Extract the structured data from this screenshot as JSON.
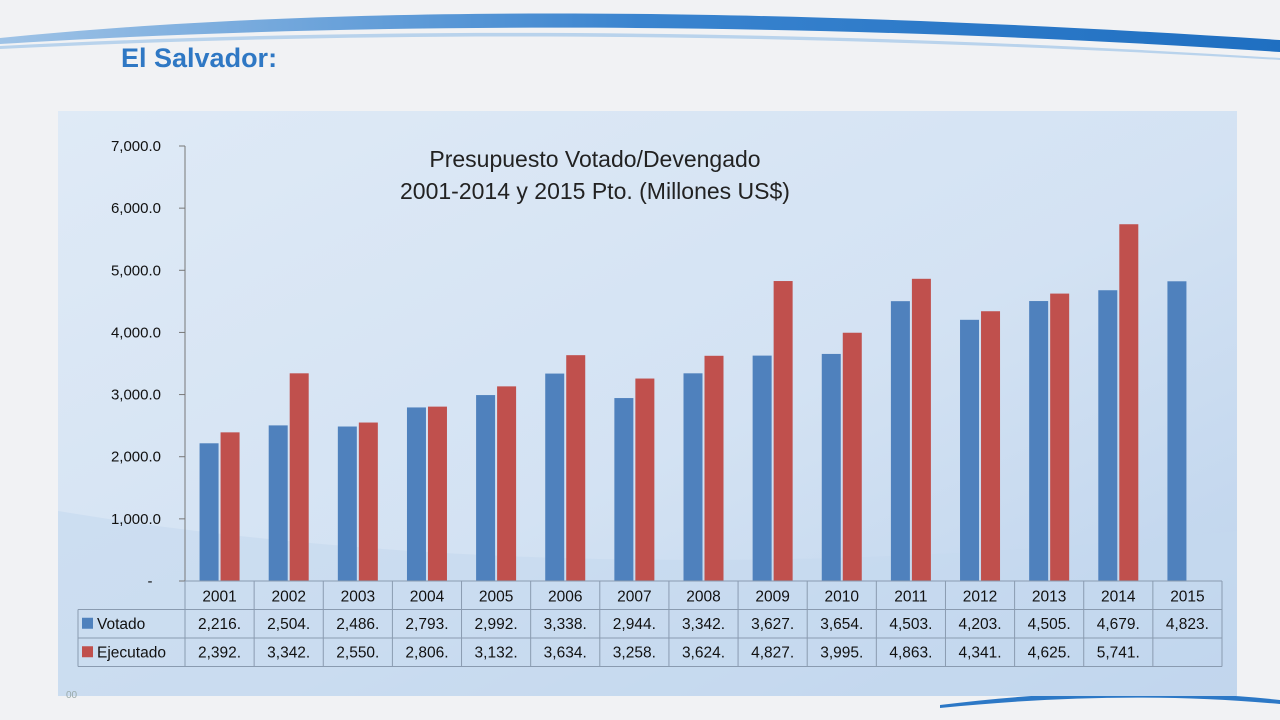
{
  "slide": {
    "title": "El Salvador:",
    "page_number": "00"
  },
  "colors": {
    "votado": "#4f81bd",
    "ejecutado": "#c0504d",
    "title_blue": "#2f78c4"
  },
  "chart_data": {
    "type": "bar",
    "title": "Presupuesto Votado/Devengado",
    "subtitle": "2001-2014 y 2015 Pto. (Millones US$)",
    "categories": [
      "2001",
      "2002",
      "2003",
      "2004",
      "2005",
      "2006",
      "2007",
      "2008",
      "2009",
      "2010",
      "2011",
      "2012",
      "2013",
      "2014",
      "2015"
    ],
    "series": [
      {
        "name": "Votado",
        "values": [
          2216,
          2504,
          2486,
          2793,
          2992,
          3338,
          2944,
          3342,
          3627,
          3654,
          4503,
          4203,
          4505,
          4679,
          4823
        ],
        "labels": [
          "2,216.",
          "2,504.",
          "2,486.",
          "2,793.",
          "2,992.",
          "3,338.",
          "2,944.",
          "3,342.",
          "3,627.",
          "3,654.",
          "4,503.",
          "4,203.",
          "4,505.",
          "4,679.",
          "4,823."
        ]
      },
      {
        "name": "Ejecutado",
        "values": [
          2392,
          3342,
          2550,
          2806,
          3132,
          3634,
          3258,
          3624,
          4827,
          3995,
          4863,
          4341,
          4625,
          5741,
          null
        ],
        "labels": [
          "2,392.",
          "3,342.",
          "2,550.",
          "2,806.",
          "3,132.",
          "3,634.",
          "3,258.",
          "3,624.",
          "4,827.",
          "3,995.",
          "4,863.",
          "4,341.",
          "4,625.",
          "5,741.",
          ""
        ]
      }
    ],
    "ylim": [
      0,
      7000
    ],
    "yticks": [
      0,
      1000,
      2000,
      3000,
      4000,
      5000,
      6000,
      7000
    ],
    "ytick_labels": [
      "-",
      "1,000.0",
      "2,000.0",
      "3,000.0",
      "4,000.0",
      "5,000.0",
      "6,000.0",
      "7,000.0"
    ],
    "grid": false,
    "legend": "data-table"
  }
}
